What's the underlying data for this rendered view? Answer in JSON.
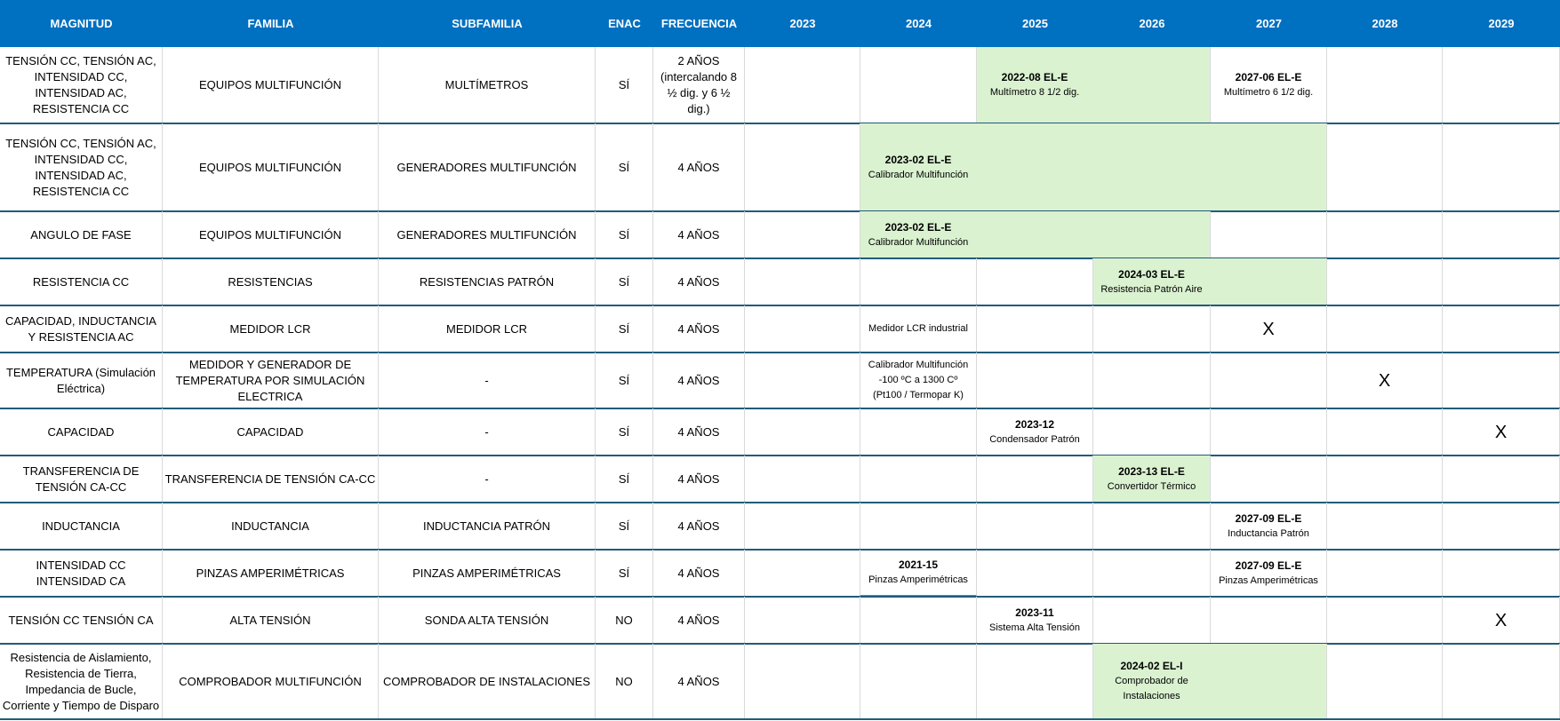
{
  "columns": {
    "magnitud": "MAGNITUD",
    "familia": "FAMILIA",
    "subfamilia": "SUBFAMILIA",
    "enac": "ENAC",
    "frecuencia": "FRECUENCIA",
    "years": [
      "2023",
      "2024",
      "2025",
      "2026",
      "2027",
      "2028",
      "2029"
    ]
  },
  "colors": {
    "header_bg": "#0070C0",
    "header_text": "#FFFFFF",
    "planned_fill": "#DAF2D0",
    "row_border": "#1F5C7A",
    "active_cell_underline": "#2E9BD6"
  },
  "rows": [
    {
      "magnitud": "TENSIÓN CC, TENSIÓN AC, INTENSIDAD CC, INTENSIDAD AC, RESISTENCIA CC",
      "familia": "EQUIPOS MULTIFUNCIÓN",
      "subfamilia": "MULTÍMETROS",
      "enac": "SÍ",
      "frecuencia": "2 AÑOS (intercalando 8 ½ dig. y 6 ½ dig.)",
      "green_years": [
        "2025",
        "2026"
      ],
      "entries": [
        {
          "year": "2025",
          "code": "2022-08 EL-E",
          "desc": "Multímetro 8 1/2 dig."
        },
        {
          "year": "2027",
          "code": "2027-06 EL-E",
          "desc": "Multímetro 6 1/2 dig."
        }
      ]
    },
    {
      "magnitud": "TENSIÓN CC, TENSIÓN AC, INTENSIDAD CC, INTENSIDAD AC, RESISTENCIA CC",
      "familia": "EQUIPOS MULTIFUNCIÓN",
      "subfamilia": "GENERADORES MULTIFUNCIÓN",
      "enac": "SÍ",
      "frecuencia": "4 AÑOS",
      "green_years": [
        "2024",
        "2025",
        "2026",
        "2027"
      ],
      "entries": [
        {
          "year": "2024",
          "code": "2023-02 EL-E",
          "desc": "Calibrador Multifunción"
        }
      ]
    },
    {
      "magnitud": "ANGULO DE FASE",
      "familia": "EQUIPOS MULTIFUNCIÓN",
      "subfamilia": "GENERADORES MULTIFUNCIÓN",
      "enac": "SÍ",
      "frecuencia": "4 AÑOS",
      "green_years": [
        "2024",
        "2025",
        "2026"
      ],
      "entries": [
        {
          "year": "2024",
          "code": "2023-02 EL-E",
          "desc": "Calibrador Multifunción"
        }
      ]
    },
    {
      "magnitud": "RESISTENCIA CC",
      "familia": "RESISTENCIAS",
      "subfamilia": "RESISTENCIAS PATRÓN",
      "enac": "SÍ",
      "frecuencia": "4 AÑOS",
      "green_years": [
        "2026",
        "2027"
      ],
      "entries": [
        {
          "year": "2026",
          "code": "2024-03 EL-E",
          "desc": "Resistencia Patrón Aire"
        }
      ]
    },
    {
      "magnitud": "CAPACIDAD, INDUCTANCIA Y RESISTENCIA AC",
      "familia": "MEDIDOR LCR",
      "subfamilia": "MEDIDOR LCR",
      "enac": "SÍ",
      "frecuencia": "4 AÑOS",
      "green_years": [],
      "entries": [
        {
          "year": "2024",
          "code": "",
          "desc": "Medidor LCR industrial"
        },
        {
          "year": "2027",
          "mark": "X"
        }
      ]
    },
    {
      "magnitud": "TEMPERATURA (Simulación Eléctrica)",
      "familia": "MEDIDOR Y GENERADOR DE TEMPERATURA POR SIMULACIÓN ELECTRICA",
      "subfamilia": "-",
      "enac": "SÍ",
      "frecuencia": "4 AÑOS",
      "green_years": [],
      "entries": [
        {
          "year": "2024",
          "code": "",
          "desc": "Calibrador Multifunción -100 ºC a 1300 Cº (Pt100 / Termopar K)"
        },
        {
          "year": "2028",
          "mark": "X"
        }
      ]
    },
    {
      "magnitud": "CAPACIDAD",
      "familia": "CAPACIDAD",
      "subfamilia": "-",
      "enac": "SÍ",
      "frecuencia": "4 AÑOS",
      "green_years": [],
      "entries": [
        {
          "year": "2025",
          "code": "2023-12",
          "desc": "Condensador Patrón"
        },
        {
          "year": "2029",
          "mark": "X"
        }
      ]
    },
    {
      "magnitud": "TRANSFERENCIA DE TENSIÓN CA-CC",
      "familia": "TRANSFERENCIA DE TENSIÓN CA-CC",
      "subfamilia": "-",
      "enac": "SÍ",
      "frecuencia": "4 AÑOS",
      "green_years": [
        "2026"
      ],
      "entries": [
        {
          "year": "2026",
          "code": "2023-13 EL-E",
          "desc": "Convertidor Térmico"
        }
      ]
    },
    {
      "magnitud": "INDUCTANCIA",
      "familia": "INDUCTANCIA",
      "subfamilia": "INDUCTANCIA PATRÓN",
      "enac": "SÍ",
      "frecuencia": "4 AÑOS",
      "green_years": [],
      "entries": [
        {
          "year": "2027",
          "code": "2027-09 EL-E",
          "desc": "Inductancia Patrón"
        }
      ]
    },
    {
      "magnitud": "INTENSIDAD CC INTENSIDAD CA",
      "familia": "PINZAS AMPERIMÉTRICAS",
      "subfamilia": "PINZAS AMPERIMÉTRICAS",
      "enac": "SÍ",
      "frecuencia": "4 AÑOS",
      "green_years": [],
      "active_year": "2024",
      "entries": [
        {
          "year": "2024",
          "code": "2021-15",
          "desc": "Pinzas Amperimétricas"
        },
        {
          "year": "2027",
          "code": "2027-09 EL-E",
          "desc": "Pinzas Amperimétricas"
        }
      ]
    },
    {
      "magnitud": "TENSIÓN CC TENSIÓN CA",
      "familia": "ALTA TENSIÓN",
      "subfamilia": "SONDA ALTA TENSIÓN",
      "enac": "NO",
      "frecuencia": "4 AÑOS",
      "green_years": [],
      "entries": [
        {
          "year": "2025",
          "code": "2023-11",
          "desc": "Sistema Alta Tensión"
        },
        {
          "year": "2029",
          "mark": "X"
        }
      ]
    },
    {
      "magnitud": "Resistencia de Aislamiento, Resistencia de Tierra, Impedancia de Bucle, Corriente y Tiempo de Disparo",
      "familia": "COMPROBADOR MULTIFUNCIÓN",
      "subfamilia": "COMPROBADOR DE INSTALACIONES",
      "enac": "NO",
      "frecuencia": "4 AÑOS",
      "green_years": [
        "2026",
        "2027"
      ],
      "entries": [
        {
          "year": "2026",
          "code": "2024-02 EL-I",
          "desc": "Comprobador de Instalaciones"
        }
      ]
    }
  ]
}
